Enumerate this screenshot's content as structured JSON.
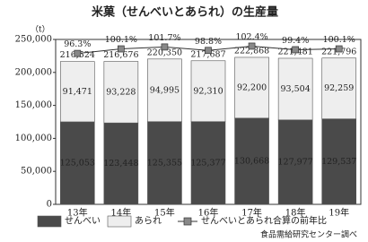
{
  "chart_data": {
    "type": "stacked_bar_line",
    "title": "米菓（せんべいとあられ）の生産量",
    "y_unit": "（t）",
    "categories": [
      "13年",
      "14年",
      "15年",
      "16年",
      "17年",
      "18年",
      "19年"
    ],
    "series": [
      {
        "name": "せんべい",
        "color": "#4a4a4a",
        "label_color": "#ffffff",
        "values": [
          125053,
          123448,
          125355,
          125377,
          130668,
          127977,
          129537
        ],
        "value_labels": [
          "125,053",
          "123,448",
          "125,355",
          "125,377",
          "130,668",
          "127,977",
          "129,537"
        ]
      },
      {
        "name": "あられ",
        "color": "#eeeeee",
        "label_color": "#222222",
        "values": [
          91471,
          93228,
          94995,
          92310,
          92200,
          93504,
          92259
        ],
        "value_labels": [
          "91,471",
          "93,228",
          "94,995",
          "92,310",
          "92,200",
          "93,504",
          "92,259"
        ]
      },
      {
        "name": "せんべいとあられ合算の前年比",
        "color": "#888888",
        "axis": "y2",
        "values": [
          96.3,
          100.1,
          101.7,
          98.8,
          102.4,
          99.4,
          100.1
        ],
        "value_labels": [
          "96.3%",
          "100.1%",
          "101.7%",
          "98.8%",
          "102.4%",
          "99.4%",
          "100.1%"
        ]
      }
    ],
    "totals": {
      "values": [
        216524,
        216676,
        220350,
        217687,
        222868,
        221481,
        221796
      ],
      "value_labels": [
        "216,524",
        "216,676",
        "220,350",
        "217,687",
        "222,868",
        "221,481",
        "221,796"
      ]
    },
    "ylim": [
      0,
      250000
    ],
    "yticks": [
      {
        "value": 0,
        "label": "0"
      },
      {
        "value": 50000,
        "label": "50,000"
      },
      {
        "value": 100000,
        "label": "100,000"
      },
      {
        "value": 150000,
        "label": "150,000"
      },
      {
        "value": 200000,
        "label": "200,000"
      },
      {
        "value": 250000,
        "label": "250,000"
      }
    ],
    "y2lim": [
      -30,
      108
    ],
    "source": "食品需給研究センター調べ"
  }
}
